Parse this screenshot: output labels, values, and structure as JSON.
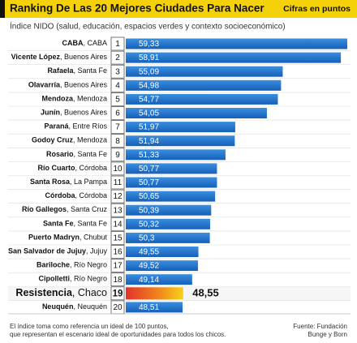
{
  "chart_data": {
    "type": "bar",
    "title": "Ranking De Las 20 Mejores Ciudades Para Nacer",
    "unit_note": "Cifras en puntos",
    "subtitle": "Índice NIDO (salud, educación, espacios verdes y contexto socioeconómico)",
    "categories": [
      "CABA, CABA",
      "Vicente López, Buenos Aires",
      "Rafaela, Santa Fe",
      "Olavarría, Buenos Aires",
      "Mendoza, Mendoza",
      "Junín, Buenos Aires",
      "Paraná, Entre Ríos",
      "Godoy Cruz, Mendoza",
      "Rosario, Santa Fe",
      "Río Cuarto, Córdoba",
      "Santa Rosa, La Pampa",
      "Córdoba, Córdoba",
      "Río Gallegos, Santa Cruz",
      "Santa Fe, Santa Fe",
      "Puerto Madryn, Chubut",
      "San Salvador de Jujuy, Jujuy",
      "Bariloche, Río Negro",
      "Cipolletti, Río Negro",
      "Resistencia, Chaco",
      "Neuquén, Neuquén"
    ],
    "ranks": [
      1,
      2,
      3,
      4,
      5,
      6,
      7,
      8,
      9,
      10,
      11,
      12,
      13,
      14,
      15,
      16,
      17,
      18,
      19,
      20
    ],
    "values": [
      59.33,
      58.91,
      55.09,
      54.98,
      54.77,
      54.05,
      51.97,
      51.94,
      51.33,
      50.77,
      50.77,
      50.65,
      50.39,
      50.32,
      50.3,
      49.55,
      49.52,
      49.14,
      48.55,
      48.51
    ],
    "value_labels": [
      "59,33",
      "58,91",
      "55,09",
      "54,98",
      "54,77",
      "54,05",
      "51,97",
      "51,94",
      "51,33",
      "50,77",
      "50,77",
      "50,65",
      "50,39",
      "50,32",
      "50,3",
      "49,55",
      "49,52",
      "49,14",
      "48,55",
      "48,51"
    ],
    "colors": [
      "#1f6fc6",
      "#1f6fc6",
      "#1f6fc6",
      "#1f6fc6",
      "#1f6fc6",
      "#1f6fc6",
      "#1f6fc6",
      "#1f6fc6",
      "#1f6fc6",
      "#1f6fc6",
      "#1f6fc6",
      "#1f6fc6",
      "#1f6fc6",
      "#1f6fc6",
      "#1f6fc6",
      "#1f6fc6",
      "#1f6fc6",
      "#1f6fc6",
      "#e2322a",
      "#1f6fc6"
    ],
    "note": [
      "El índice toma como referencia un ideal de 100 puntos,",
      "que representan el escenario ideal de oportunidades para todos los chicos."
    ],
    "source": [
      "Fuente: Fundación",
      "Bunge y Born"
    ]
  }
}
